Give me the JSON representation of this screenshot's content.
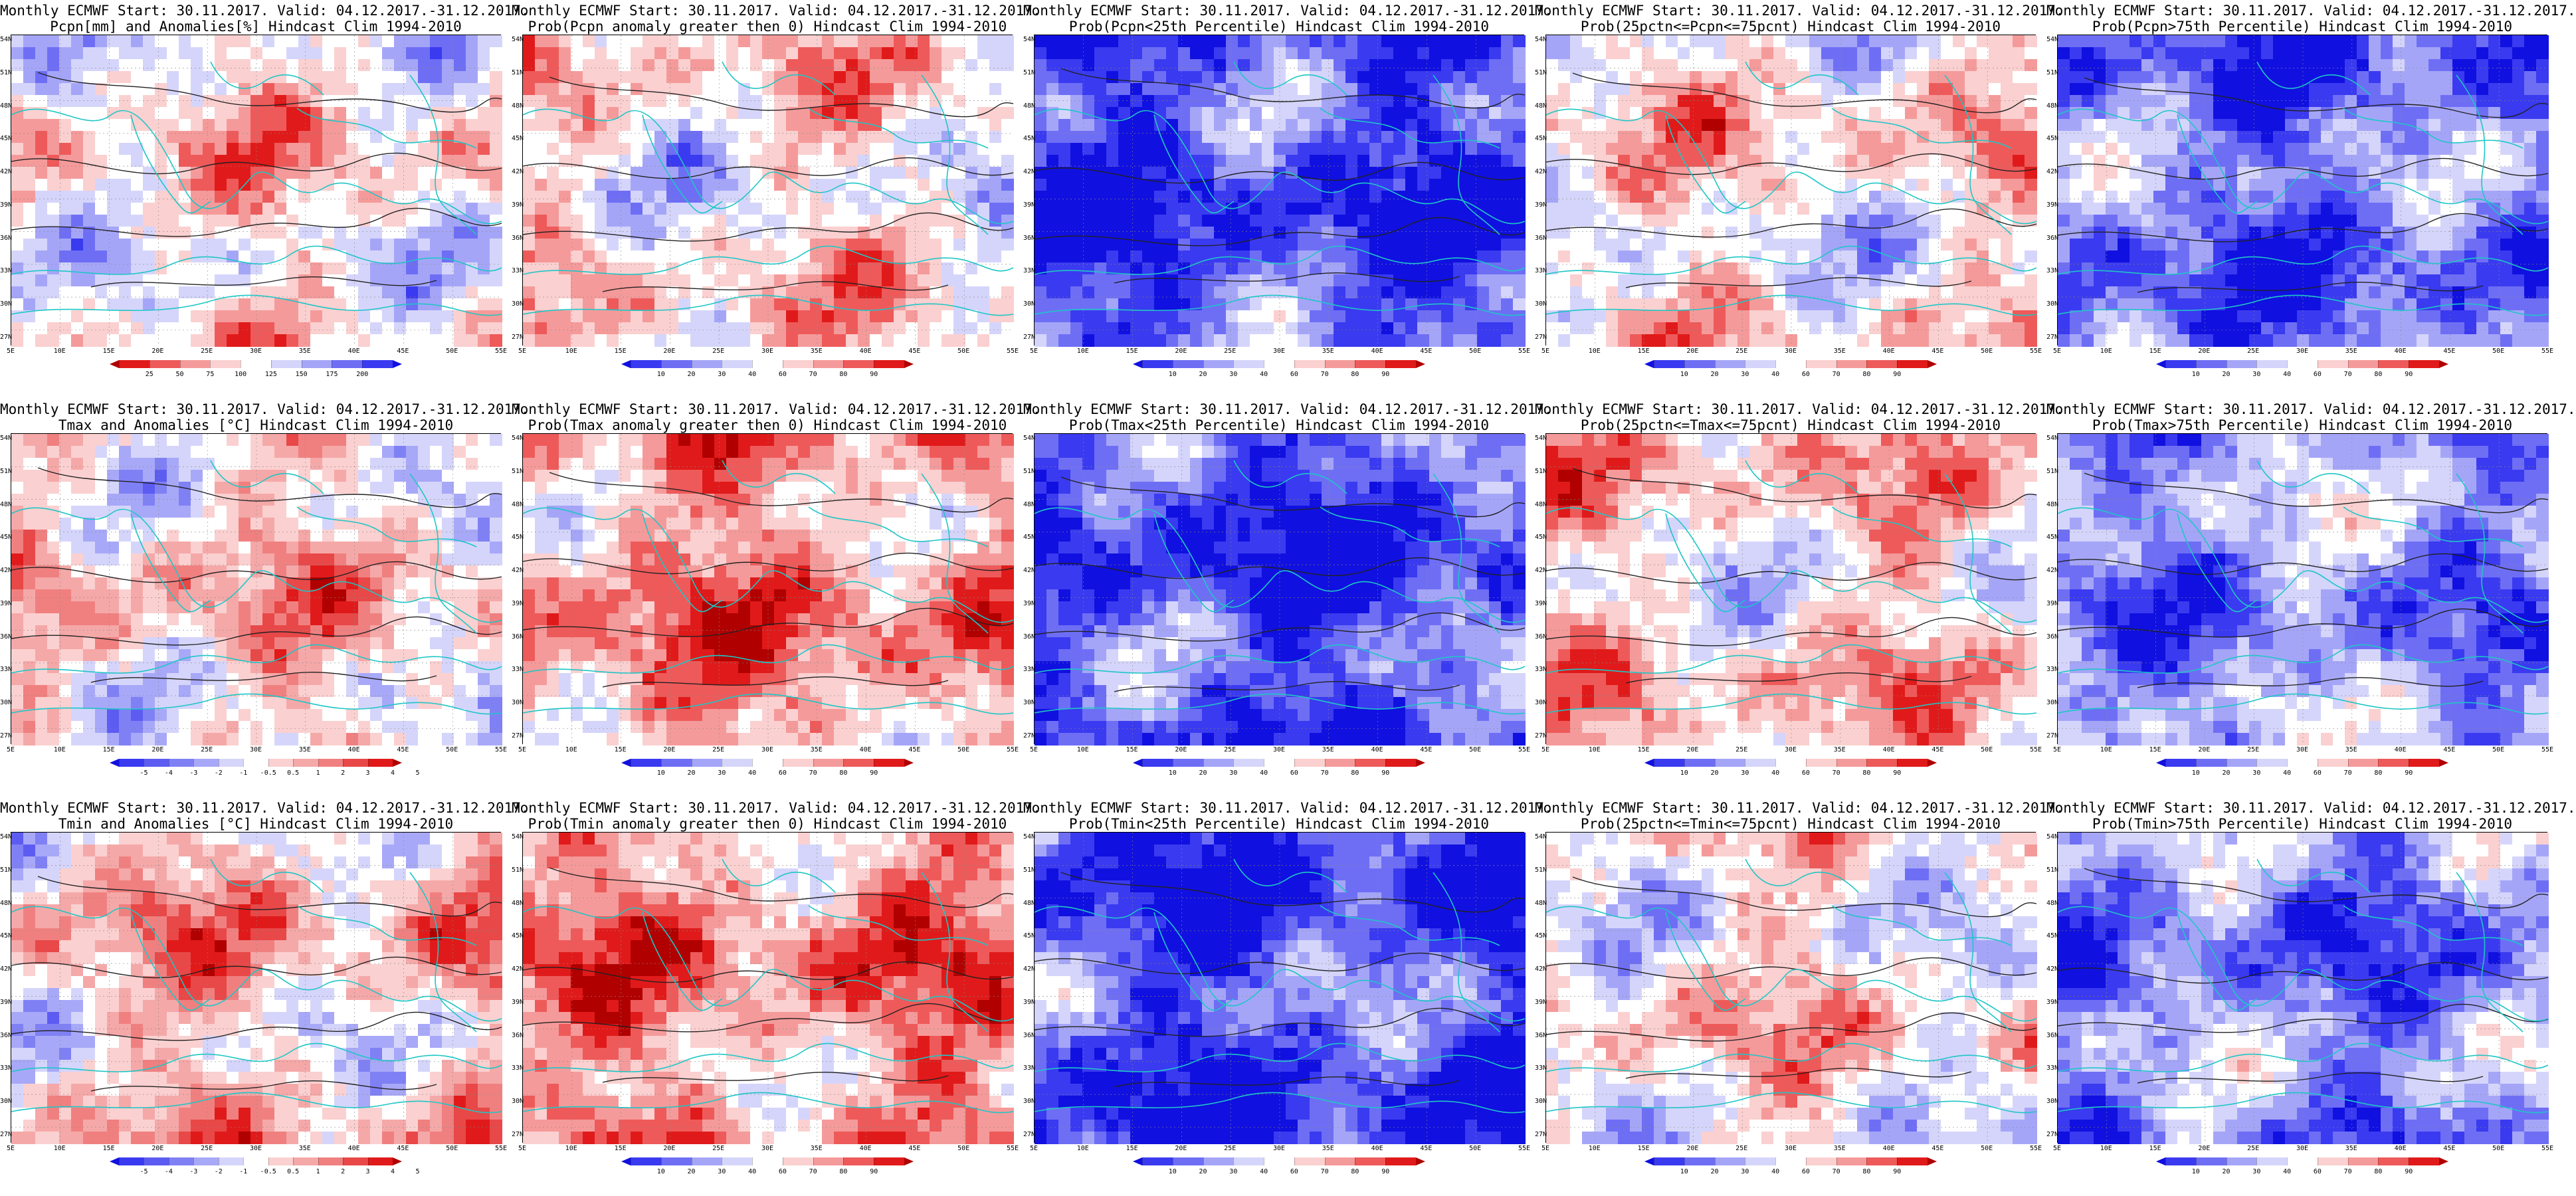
{
  "panels": [
    {
      "t1": "Monthly ECMWF Start: 30.11.2017. Valid: 04.12.2017.-31.12.2017.",
      "t2": "Pcpn[mm] and Anomalies[%] Hindcast Clim 1994-2010",
      "scale": "anom",
      "labels": [
        "25",
        "50",
        "75",
        "100",
        "125",
        "150",
        "175",
        "200"
      ]
    },
    {
      "t1": "Monthly ECMWF Start: 30.11.2017. Valid: 04.12.2017.-31.12.2017.",
      "t2": "Prob(Pcpn anomaly greater then 0) Hindcast Clim 1994-2010",
      "scale": "prob",
      "labels": [
        "10",
        "20",
        "30",
        "40",
        "60",
        "70",
        "80",
        "90"
      ]
    },
    {
      "t1": "Monthly ECMWF Start: 30.11.2017. Valid: 04.12.2017.-31.12.2017.",
      "t2": "Prob(Pcpn<25th Percentile) Hindcast Clim 1994-2010",
      "scale": "prob",
      "labels": [
        "10",
        "20",
        "30",
        "40",
        "60",
        "70",
        "80",
        "90"
      ]
    },
    {
      "t1": "Monthly ECMWF Start: 30.11.2017. Valid: 04.12.2017.-31.12.2017.",
      "t2": "Prob(25pctn<=Pcpn<=75pcnt) Hindcast Clim 1994-2010",
      "scale": "prob",
      "labels": [
        "10",
        "20",
        "30",
        "40",
        "60",
        "70",
        "80",
        "90"
      ]
    },
    {
      "t1": "Monthly ECMWF Start: 30.11.2017. Valid: 04.12.2017.-31.12.2017.",
      "t2": "Prob(Pcpn>75th Percentile) Hindcast Clim 1994-2010",
      "scale": "prob",
      "labels": [
        "10",
        "20",
        "30",
        "40",
        "60",
        "70",
        "80",
        "90"
      ]
    },
    {
      "t1": "Monthly ECMWF Start: 30.11.2017. Valid: 04.12.2017.-31.12.2017.",
      "t2": "Tmax and Anomalies [°C] Hindcast Clim 1994-2010",
      "scale": "temp",
      "labels": [
        "-5",
        "-4",
        "-3",
        "-2",
        "-1",
        "-0.5",
        "0.5",
        "1",
        "2",
        "3",
        "4",
        "5"
      ]
    },
    {
      "t1": "Monthly ECMWF Start: 30.11.2017. Valid: 04.12.2017.-31.12.2017.",
      "t2": "Prob(Tmax anomaly greater then 0) Hindcast Clim 1994-2010",
      "scale": "prob",
      "labels": [
        "10",
        "20",
        "30",
        "40",
        "60",
        "70",
        "80",
        "90"
      ]
    },
    {
      "t1": "Monthly ECMWF Start: 30.11.2017. Valid: 04.12.2017.-31.12.2017.",
      "t2": "Prob(Tmax<25th Percentile) Hindcast Clim 1994-2010",
      "scale": "prob",
      "labels": [
        "10",
        "20",
        "30",
        "40",
        "60",
        "70",
        "80",
        "90"
      ]
    },
    {
      "t1": "Monthly ECMWF Start: 30.11.2017. Valid: 04.12.2017.-31.12.2017.",
      "t2": "Prob(25pctn<=Tmax<=75pcnt) Hindcast Clim 1994-2010",
      "scale": "prob",
      "labels": [
        "10",
        "20",
        "30",
        "40",
        "60",
        "70",
        "80",
        "90"
      ]
    },
    {
      "t1": "Monthly ECMWF Start: 30.11.2017. Valid: 04.12.2017.-31.12.2017.",
      "t2": "Prob(Tmax>75th Percentile) Hindcast Clim 1994-2010",
      "scale": "prob",
      "labels": [
        "10",
        "20",
        "30",
        "40",
        "60",
        "70",
        "80",
        "90"
      ]
    },
    {
      "t1": "Monthly ECMWF Start: 30.11.2017. Valid: 04.12.2017.-31.12.2017.",
      "t2": "Tmin and Anomalies [°C] Hindcast Clim 1994-2010",
      "scale": "temp",
      "labels": [
        "-5",
        "-4",
        "-3",
        "-2",
        "-1",
        "-0.5",
        "0.5",
        "1",
        "2",
        "3",
        "4",
        "5"
      ]
    },
    {
      "t1": "Monthly ECMWF Start: 30.11.2017. Valid: 04.12.2017.-31.12.2017.",
      "t2": "Prob(Tmin anomaly greater then 0) Hindcast Clim 1994-2010",
      "scale": "prob",
      "labels": [
        "10",
        "20",
        "30",
        "40",
        "60",
        "70",
        "80",
        "90"
      ]
    },
    {
      "t1": "Monthly ECMWF Start: 30.11.2017. Valid: 04.12.2017.-31.12.2017.",
      "t2": "Prob(Tmin<25th Percentile) Hindcast Clim 1994-2010",
      "scale": "prob",
      "labels": [
        "10",
        "20",
        "30",
        "40",
        "60",
        "70",
        "80",
        "90"
      ]
    },
    {
      "t1": "Monthly ECMWF Start: 30.11.2017. Valid: 04.12.2017.-31.12.2017.",
      "t2": "Prob(25pctn<=Tmin<=75pcnt) Hindcast Clim 1994-2010",
      "scale": "prob",
      "labels": [
        "10",
        "20",
        "30",
        "40",
        "60",
        "70",
        "80",
        "90"
      ]
    },
    {
      "t1": "Monthly ECMWF Start: 30.11.2017. Valid: 04.12.2017.-31.12.2017.",
      "t2": "Prob(Tmin>75th Percentile) Hindcast Clim 1994-2010",
      "scale": "prob",
      "labels": [
        "10",
        "20",
        "30",
        "40",
        "60",
        "70",
        "80",
        "90"
      ]
    }
  ],
  "map_axes": {
    "lon_labels": [
      "5E",
      "10E",
      "15E",
      "20E",
      "25E",
      "30E",
      "35E",
      "40E",
      "45E",
      "50E",
      "55E"
    ],
    "lat_labels": [
      "54N",
      "51N",
      "48N",
      "45N",
      "42N",
      "39N",
      "36N",
      "33N",
      "30N",
      "27N"
    ]
  },
  "colors": {
    "prob_scale": [
      "#1010e0",
      "#3a3af0",
      "#6e6ef5",
      "#a5a5f8",
      "#d5d5fb",
      "#ffffff",
      "#fbd0d0",
      "#f59a9a",
      "#ee5a5a",
      "#e01a1a",
      "#b00000"
    ],
    "anom_scale": [
      "#b00000",
      "#e01a1a",
      "#ee5a5a",
      "#f59a9a",
      "#fbd0d0",
      "#ffffff",
      "#d5d5fb",
      "#a5a5f8",
      "#6e6ef5",
      "#3a3af0",
      "#1010e0"
    ],
    "temp_scale": [
      "#1010e0",
      "#3a3af0",
      "#5c5cf2",
      "#8080f5",
      "#a8a8f8",
      "#d5d5fb",
      "#ffffff",
      "#fbd0d0",
      "#f5a8a8",
      "#f08080",
      "#e84848",
      "#e01a1a",
      "#b00000"
    ],
    "coast": "#1fc6c6",
    "contour": "#222222"
  }
}
